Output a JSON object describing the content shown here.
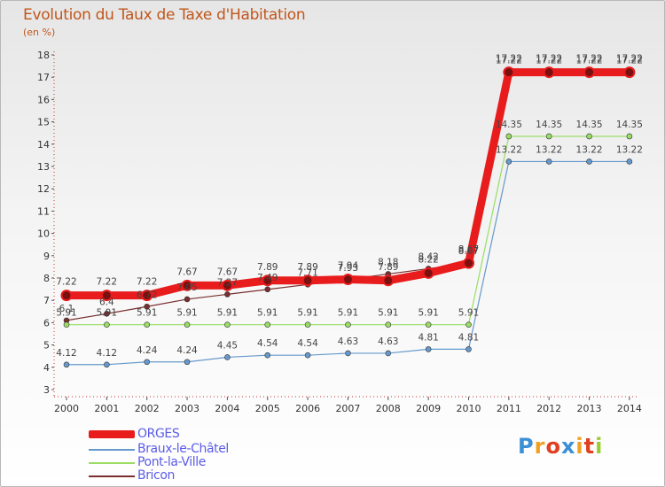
{
  "chart_data": {
    "type": "line",
    "title": "Evolution du Taux de Taxe d'Habitation",
    "subtitle": "(en %)",
    "x": [
      "2000",
      "2001",
      "2002",
      "2003",
      "2004",
      "2005",
      "2006",
      "2007",
      "2008",
      "2009",
      "2010",
      "2011",
      "2012",
      "2013",
      "2014"
    ],
    "ylim": [
      3,
      18
    ],
    "yticks": [
      3,
      4,
      5,
      6,
      7,
      8,
      9,
      10,
      11,
      12,
      13,
      14,
      15,
      16,
      17,
      18
    ],
    "grid": false,
    "legend_position": "bottom-left",
    "series": [
      {
        "name": "ORGES",
        "color": "#e81c1c",
        "values": [
          7.22,
          7.22,
          7.22,
          7.67,
          7.67,
          7.89,
          7.89,
          7.94,
          7.89,
          8.22,
          8.67,
          17.22,
          17.22,
          17.22,
          17.22
        ],
        "labels": [
          "7.22",
          "7.22",
          "7.22",
          "7.67",
          "7.67",
          "7.89",
          "7.89",
          "7.94",
          "7.89",
          "8.22",
          "8.67",
          "17.22",
          "17.22",
          "17.22",
          "17.22"
        ]
      },
      {
        "name": "Braux-le-Châtel",
        "color": "#6699cc",
        "values": [
          4.12,
          4.12,
          4.24,
          4.24,
          4.45,
          4.54,
          4.54,
          4.63,
          4.63,
          4.81,
          4.81,
          13.22,
          13.22,
          13.22,
          13.22
        ],
        "labels": [
          "4.12",
          "4.12",
          "4.24",
          "4.24",
          "4.45",
          "4.54",
          "4.54",
          "4.63",
          "4.63",
          "4.81",
          "4.81",
          "13.22",
          "13.22",
          "13.22",
          "13.22"
        ]
      },
      {
        "name": "Pont-la-Ville",
        "color": "#99dd66",
        "values": [
          5.91,
          5.91,
          5.91,
          5.91,
          5.91,
          5.91,
          5.91,
          5.91,
          5.91,
          5.91,
          5.91,
          14.35,
          14.35,
          14.35,
          14.35
        ],
        "labels": [
          "5.91",
          "5.91",
          "5.91",
          "5.91",
          "5.91",
          "5.91",
          "5.91",
          "5.91",
          "5.91",
          "5.91",
          "5.91",
          "14.35",
          "14.35",
          "14.35",
          "14.35"
        ]
      },
      {
        "name": "Bricon",
        "color": "#7a2e2e",
        "values": [
          6.1,
          6.4,
          6.72,
          7.05,
          7.27,
          7.49,
          7.71,
          7.93,
          8.18,
          8.42,
          8.67,
          17.22,
          17.22,
          17.22,
          17.22
        ],
        "labels": [
          "6.1",
          "6.4",
          "6.72",
          "7.05",
          "7.27",
          "7.49",
          "7.71",
          "7.93",
          "8.18",
          "8.42",
          "8.67",
          "17.22",
          "17.22",
          "17.22",
          "17.22"
        ]
      }
    ]
  },
  "logo": {
    "letters": [
      "P",
      "r",
      "o",
      "x",
      "i",
      "t",
      "i"
    ],
    "colors": [
      "#3b8fd6",
      "#f0a020",
      "#e04020",
      "#3b8fd6",
      "#f0a020",
      "#e04020",
      "#9acd32"
    ]
  }
}
